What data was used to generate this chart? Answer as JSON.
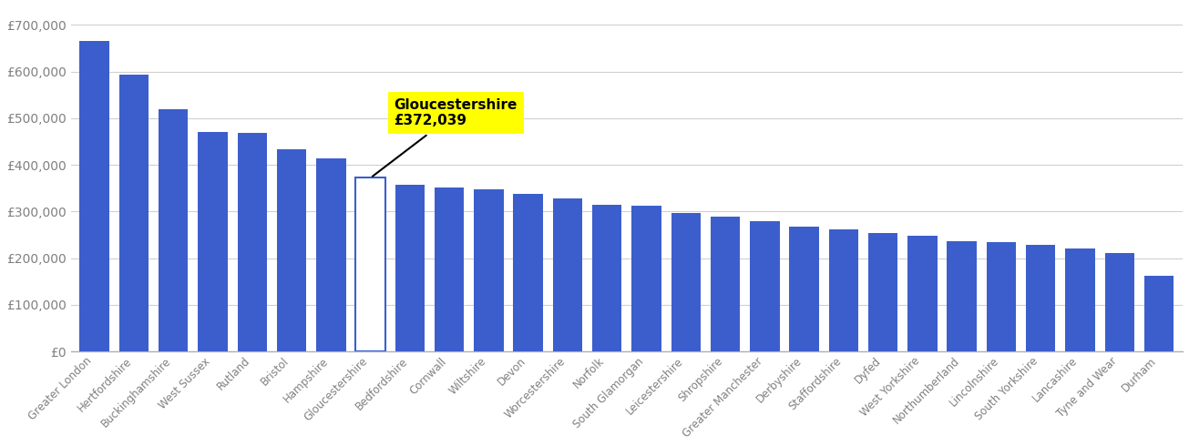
{
  "categories": [
    "Greater London",
    "Hertfordshire",
    "Buckinghamshire",
    "West Sussex",
    "Rutland",
    "Bristol",
    "Hampshire",
    "Gloucestershire",
    "Bedfordshire",
    "Cornwall",
    "Wiltshire",
    "Devon",
    "Worcestershire",
    "Norfolk",
    "South Glamorgan",
    "Leicestershire",
    "Shropshire",
    "Greater Manchester",
    "Derbyshire",
    "Staffordshire",
    "Dyfed",
    "West Yorkshire",
    "Northumberland",
    "Lincolnshire",
    "South Yorkshire",
    "Lancashire",
    "Tyne and Wear",
    "Durham"
  ],
  "values": [
    665000,
    593000,
    520000,
    470000,
    468000,
    433000,
    413000,
    372039,
    358000,
    352000,
    347000,
    338000,
    328000,
    315000,
    313000,
    297000,
    290000,
    280000,
    268000,
    262000,
    253000,
    248000,
    237000,
    235000,
    228000,
    220000,
    210000,
    163000
  ],
  "highlight_index": 7,
  "highlight_color": "#ffff00",
  "bar_color": "#3c5ecc",
  "background_color": "#ffffff",
  "tick_color": "#808080",
  "ytick_labels": [
    "£0",
    "£100,000",
    "£200,000",
    "£300,000",
    "£400,000",
    "£500,000",
    "£600,000",
    "£700,000"
  ],
  "ytick_values": [
    0,
    100000,
    200000,
    300000,
    400000,
    500000,
    600000,
    700000
  ],
  "ylim": [
    0,
    740000
  ],
  "grid_color": "#d0d0d0",
  "annotation_text": "Gloucestershire\n£372,039",
  "annotation_fontsize": 11,
  "xtick_fontsize": 8.5,
  "ytick_fontsize": 10
}
